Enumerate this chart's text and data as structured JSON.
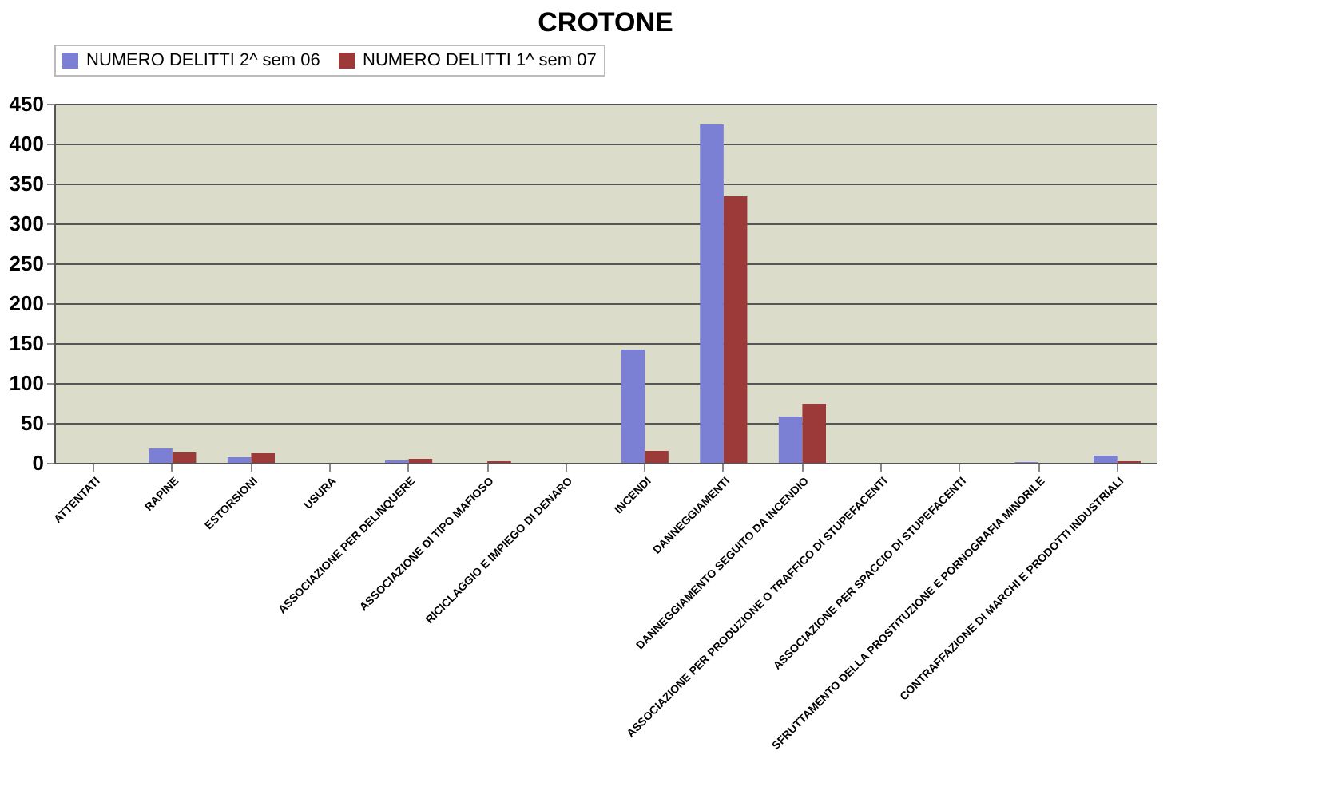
{
  "chart_data": {
    "type": "bar",
    "title": "CROTONE",
    "categories": [
      "ATTENTATI",
      "RAPINE",
      "ESTORSIONI",
      "USURA",
      "ASSOCIAZIONE PER DELINQUERE",
      "ASSOCIAZIONE DI TIPO MAFIOSO",
      "RICICLAGGIO E IMPIEGO DI DENARO",
      "INCENDI",
      "DANNEGGIAMENTI",
      "DANNEGGIAMENTO SEGUITO DA INCENDIO",
      "ASSOCIAZIONE PER PRODUZIONE O TRAFFICO DI STUPEFACENTI",
      "ASSOCIAZIONE PER SPACCIO DI STUPEFACENTI",
      "SFRUTTAMENTO DELLA PROSTITUZIONE E PORNOGRAFIA MINORILE",
      "CONTRAFFAZIONE DI MARCHI E PRODOTTI INDUSTRIALI"
    ],
    "series": [
      {
        "name": "NUMERO DELITTI 2^ sem 06",
        "color": "#7b80d4",
        "values": [
          0,
          18,
          7,
          0,
          3,
          0,
          0,
          142,
          424,
          58,
          0,
          0,
          1,
          9
        ]
      },
      {
        "name": "NUMERO DELITTI 1^ sem 07",
        "color": "#9c3a3a",
        "values": [
          0,
          13,
          12,
          0,
          5,
          2,
          0,
          15,
          334,
          74,
          0,
          0,
          0,
          2
        ]
      }
    ],
    "ylim": [
      0,
      450
    ],
    "yticks": [
      0,
      50,
      100,
      150,
      200,
      250,
      300,
      350,
      400,
      450
    ],
    "grid": "y",
    "legend": "top"
  }
}
